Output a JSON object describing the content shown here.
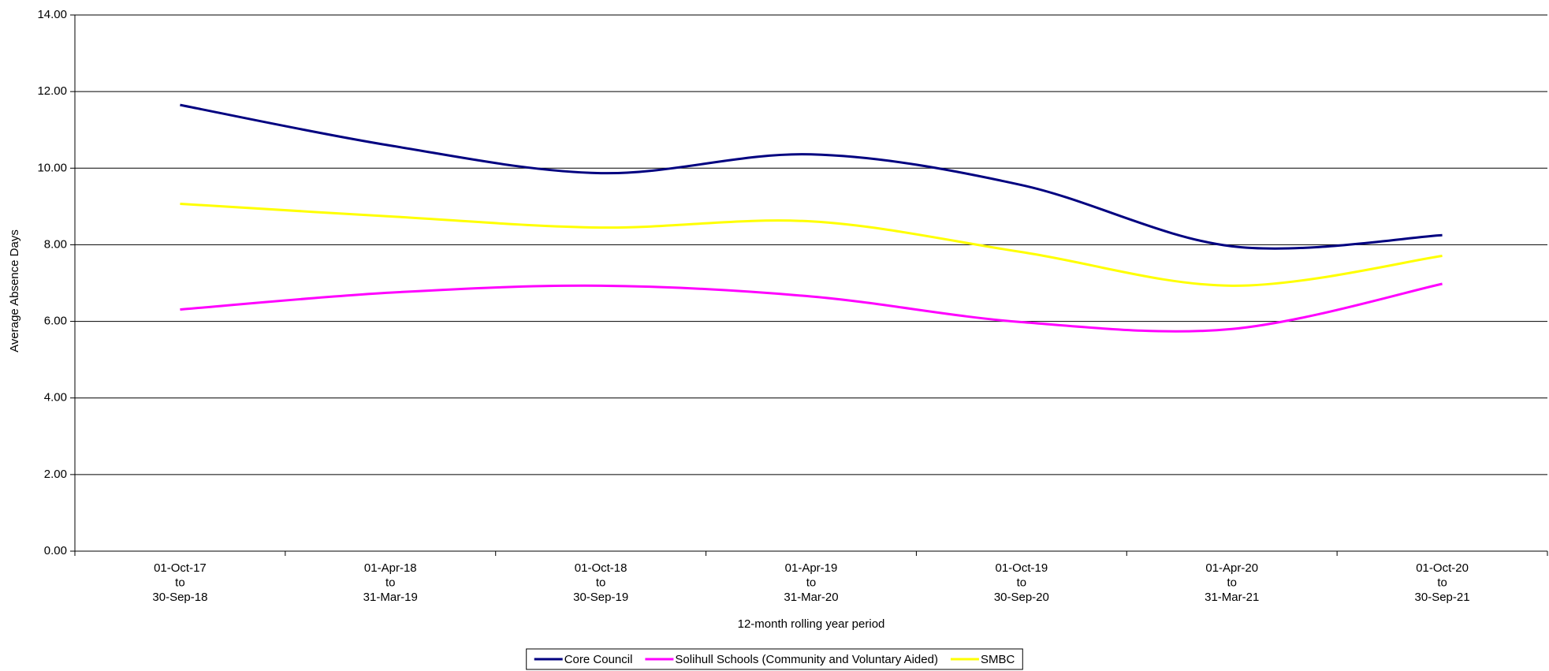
{
  "chart_data": {
    "type": "line",
    "x_label": "12-month rolling year period",
    "y_label": "Average Absence Days",
    "categories": [
      [
        "01-Oct-17",
        "to",
        "30-Sep-18"
      ],
      [
        "01-Apr-18",
        "to",
        "31-Mar-19"
      ],
      [
        "01-Oct-18",
        "to",
        "30-Sep-19"
      ],
      [
        "01-Apr-19",
        "to",
        "31-Mar-20"
      ],
      [
        "01-Oct-19",
        "to",
        "30-Sep-20"
      ],
      [
        "01-Apr-20",
        "to",
        "31-Mar-21"
      ],
      [
        "01-Oct-20",
        "to",
        "30-Sep-21"
      ]
    ],
    "series": [
      {
        "name": "Core Council",
        "color": "#000080",
        "values": [
          11.65,
          10.59,
          9.87,
          10.36,
          9.56,
          7.96,
          8.25
        ]
      },
      {
        "name": "Solihull Schools (Community and Voluntary Aided)",
        "color": "#ff00ff",
        "values": [
          6.31,
          6.75,
          6.93,
          6.65,
          5.98,
          5.8,
          6.98
        ]
      },
      {
        "name": "SMBC",
        "color": "#ffff00",
        "values": [
          9.07,
          8.74,
          8.45,
          8.61,
          7.81,
          6.93,
          7.71
        ]
      }
    ],
    "ylim": [
      0,
      14
    ],
    "yticks": [
      {
        "value": 0,
        "label": "0.00"
      },
      {
        "value": 2,
        "label": "2.00"
      },
      {
        "value": 4,
        "label": "4.00"
      },
      {
        "value": 6,
        "label": "6.00"
      },
      {
        "value": 8,
        "label": "8.00"
      },
      {
        "value": 10,
        "label": "10.00"
      },
      {
        "value": 12,
        "label": "12.00"
      },
      {
        "value": 14,
        "label": "14.00"
      }
    ],
    "grid": true,
    "smooth": true,
    "legend": "bottom"
  }
}
